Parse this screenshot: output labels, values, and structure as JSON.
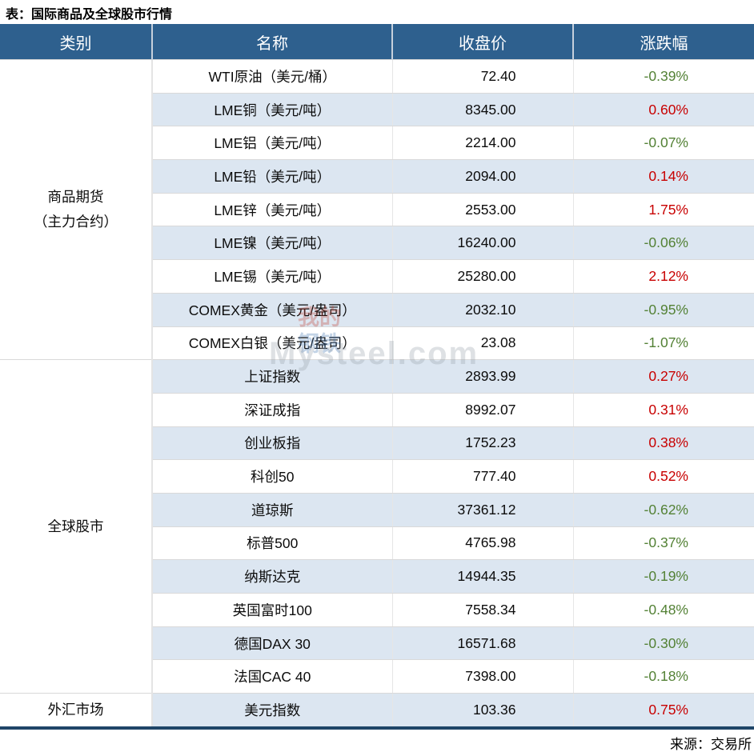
{
  "title": "表：国际商品及全球股市行情",
  "source": "来源：交易所",
  "watermark": {
    "text": "Mysteel.com",
    "logo_top": "我的",
    "logo_bottom": "钢铁"
  },
  "colors": {
    "header_bg": "#2E608E",
    "stripe": "#DCE6F1",
    "up": "#C80000",
    "down": "#538135",
    "bottom_border": "#1F4568"
  },
  "table": {
    "headers": [
      "类别",
      "名称",
      "收盘价",
      "涨跌幅"
    ],
    "categories": [
      {
        "lines": [
          "商品期货",
          "（主力合约）"
        ],
        "rowspan": 9
      },
      {
        "lines": [
          "全球股市"
        ],
        "rowspan": 10
      },
      {
        "lines": [
          "外汇市场"
        ],
        "rowspan": 1
      }
    ],
    "rows": [
      {
        "name": "WTI原油（美元/桶）",
        "close": "72.40",
        "change": "-0.39%",
        "direction": "down"
      },
      {
        "name": "LME铜（美元/吨）",
        "close": "8345.00",
        "change": "0.60%",
        "direction": "up"
      },
      {
        "name": "LME铝（美元/吨）",
        "close": "2214.00",
        "change": "-0.07%",
        "direction": "down"
      },
      {
        "name": "LME铅（美元/吨）",
        "close": "2094.00",
        "change": "0.14%",
        "direction": "up"
      },
      {
        "name": "LME锌（美元/吨）",
        "close": "2553.00",
        "change": "1.75%",
        "direction": "up"
      },
      {
        "name": "LME镍（美元/吨）",
        "close": "16240.00",
        "change": "-0.06%",
        "direction": "down"
      },
      {
        "name": "LME锡（美元/吨）",
        "close": "25280.00",
        "change": "2.12%",
        "direction": "up"
      },
      {
        "name": "COMEX黄金（美元/盎司）",
        "close": "2032.10",
        "change": "-0.95%",
        "direction": "down"
      },
      {
        "name": "COMEX白银（美元/盎司）",
        "close": "23.08",
        "change": "-1.07%",
        "direction": "down"
      },
      {
        "name": "上证指数",
        "close": "2893.99",
        "change": "0.27%",
        "direction": "up"
      },
      {
        "name": "深证成指",
        "close": "8992.07",
        "change": "0.31%",
        "direction": "up"
      },
      {
        "name": "创业板指",
        "close": "1752.23",
        "change": "0.38%",
        "direction": "up"
      },
      {
        "name": "科创50",
        "close": "777.40",
        "change": "0.52%",
        "direction": "up"
      },
      {
        "name": "道琼斯",
        "close": "37361.12",
        "change": "-0.62%",
        "direction": "down"
      },
      {
        "name": "标普500",
        "close": "4765.98",
        "change": "-0.37%",
        "direction": "down"
      },
      {
        "name": "纳斯达克",
        "close": "14944.35",
        "change": "-0.19%",
        "direction": "down"
      },
      {
        "name": "英国富时100",
        "close": "7558.34",
        "change": "-0.48%",
        "direction": "down"
      },
      {
        "name": "德国DAX 30",
        "close": "16571.68",
        "change": "-0.30%",
        "direction": "down"
      },
      {
        "name": "法国CAC 40",
        "close": "7398.00",
        "change": "-0.18%",
        "direction": "down"
      },
      {
        "name": "美元指数",
        "close": "103.36",
        "change": "0.75%",
        "direction": "up"
      }
    ]
  },
  "chart_data": {
    "type": "table",
    "title": "表：国际商品及全球股市行情",
    "columns": [
      "类别",
      "名称",
      "收盘价",
      "涨跌幅"
    ],
    "rows": [
      [
        "商品期货（主力合约）",
        "WTI原油（美元/桶）",
        72.4,
        "-0.39%"
      ],
      [
        "商品期货（主力合约）",
        "LME铜（美元/吨）",
        8345.0,
        "0.60%"
      ],
      [
        "商品期货（主力合约）",
        "LME铝（美元/吨）",
        2214.0,
        "-0.07%"
      ],
      [
        "商品期货（主力合约）",
        "LME铅（美元/吨）",
        2094.0,
        "0.14%"
      ],
      [
        "商品期货（主力合约）",
        "LME锌（美元/吨）",
        2553.0,
        "1.75%"
      ],
      [
        "商品期货（主力合约）",
        "LME镍（美元/吨）",
        16240.0,
        "-0.06%"
      ],
      [
        "商品期货（主力合约）",
        "LME锡（美元/吨）",
        25280.0,
        "2.12%"
      ],
      [
        "商品期货（主力合约）",
        "COMEX黄金（美元/盎司）",
        2032.1,
        "-0.95%"
      ],
      [
        "商品期货（主力合约）",
        "COMEX白银（美元/盎司）",
        23.08,
        "-1.07%"
      ],
      [
        "全球股市",
        "上证指数",
        2893.99,
        "0.27%"
      ],
      [
        "全球股市",
        "深证成指",
        8992.07,
        "0.31%"
      ],
      [
        "全球股市",
        "创业板指",
        1752.23,
        "0.38%"
      ],
      [
        "全球股市",
        "科创50",
        777.4,
        "0.52%"
      ],
      [
        "全球股市",
        "道琼斯",
        37361.12,
        "-0.62%"
      ],
      [
        "全球股市",
        "标普500",
        4765.98,
        "-0.37%"
      ],
      [
        "全球股市",
        "纳斯达克",
        14944.35,
        "-0.19%"
      ],
      [
        "全球股市",
        "英国富时100",
        7558.34,
        "-0.48%"
      ],
      [
        "全球股市",
        "德国DAX 30",
        16571.68,
        "-0.30%"
      ],
      [
        "全球股市",
        "法国CAC 40",
        7398.0,
        "-0.18%"
      ],
      [
        "外汇市场",
        "美元指数",
        103.36,
        "0.75%"
      ]
    ],
    "legend": {
      "up_color_meaning": "红色为上涨",
      "down_color_meaning": "绿色为下跌"
    }
  }
}
